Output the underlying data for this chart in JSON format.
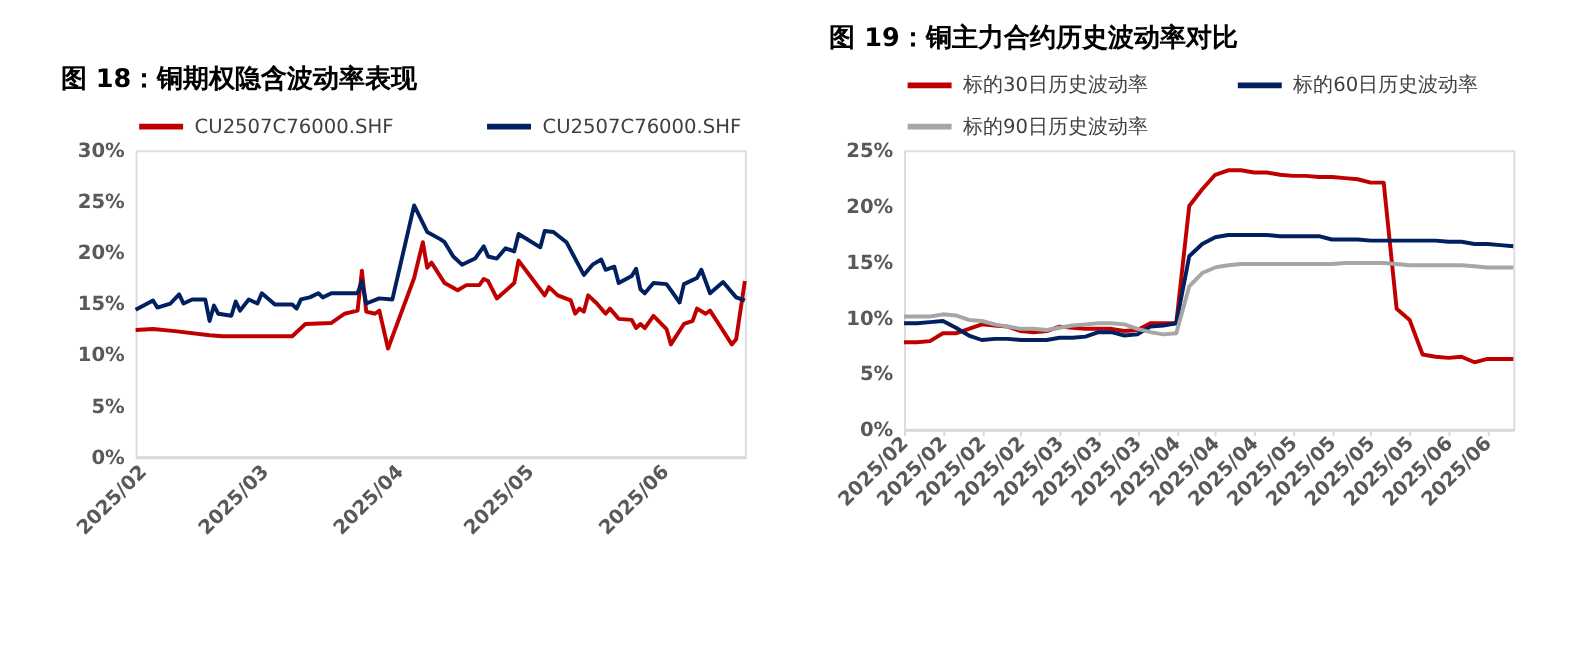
{
  "chart_data": [
    {
      "type": "line",
      "title": "图 18：铜期权隐含波动率表现",
      "legend": "top",
      "xlim": [
        "2025-02-01",
        "2025-06-21"
      ],
      "xticks": [
        {
          "value": "2025-02-01",
          "label": "2025/02"
        },
        {
          "value": "2025-03-01",
          "label": "2025/03"
        },
        {
          "value": "2025-04-01",
          "label": "2025/04"
        },
        {
          "value": "2025-05-01",
          "label": "2025/05"
        },
        {
          "value": "2025-06-01",
          "label": "2025/06"
        }
      ],
      "ylim": [
        0,
        30
      ],
      "yticks": [
        {
          "value": 0,
          "label": "0%"
        },
        {
          "value": 5,
          "label": "5%"
        },
        {
          "value": 10,
          "label": "10%"
        },
        {
          "value": 15,
          "label": "15%"
        },
        {
          "value": 20,
          "label": "20%"
        },
        {
          "value": 25,
          "label": "25%"
        },
        {
          "value": 30,
          "label": "30%"
        }
      ],
      "grid": false,
      "series": [
        {
          "name": "CU2507C76000.SHF",
          "color": "#c00000",
          "x": [
            "2025-02-01",
            "2025-02-05",
            "2025-02-10",
            "2025-02-18",
            "2025-02-21",
            "2025-03-09",
            "2025-03-12",
            "2025-03-18",
            "2025-03-21",
            "2025-03-24",
            "2025-03-25",
            "2025-03-26",
            "2025-03-28",
            "2025-03-29",
            "2025-03-31",
            "2025-04-06",
            "2025-04-08",
            "2025-04-09",
            "2025-04-10",
            "2025-04-13",
            "2025-04-16",
            "2025-04-18",
            "2025-04-21",
            "2025-04-22",
            "2025-04-23",
            "2025-04-25",
            "2025-04-29",
            "2025-04-30",
            "2025-05-03",
            "2025-05-06",
            "2025-05-07",
            "2025-05-09",
            "2025-05-12",
            "2025-05-13",
            "2025-05-14",
            "2025-05-15",
            "2025-05-16",
            "2025-05-18",
            "2025-05-20",
            "2025-05-21",
            "2025-05-23",
            "2025-05-26",
            "2025-05-27",
            "2025-05-28",
            "2025-05-29",
            "2025-05-31",
            "2025-06-03",
            "2025-06-04",
            "2025-06-07",
            "2025-06-09",
            "2025-06-10",
            "2025-06-12",
            "2025-06-13",
            "2025-06-15",
            "2025-06-18",
            "2025-06-19",
            "2025-06-21"
          ],
          "values": [
            12.4,
            12.5,
            12.3,
            11.9,
            11.8,
            11.8,
            13.0,
            13.1,
            14.0,
            14.3,
            18.2,
            14.2,
            14.0,
            14.3,
            10.6,
            17.5,
            21.0,
            18.5,
            19.0,
            17.0,
            16.3,
            16.8,
            16.8,
            17.4,
            17.2,
            15.5,
            17.0,
            19.2,
            17.5,
            15.8,
            16.6,
            15.8,
            15.3,
            14.0,
            14.5,
            14.2,
            15.8,
            15.0,
            14.0,
            14.5,
            13.5,
            13.4,
            12.6,
            13.0,
            12.6,
            13.8,
            12.5,
            11.0,
            13.0,
            13.3,
            14.5,
            14.0,
            14.3,
            13.0,
            11.0,
            11.5,
            17.2
          ]
        },
        {
          "name": "CU2507C76000.SHF",
          "color": "#002060",
          "x": [
            "2025-02-01",
            "2025-02-05",
            "2025-02-06",
            "2025-02-09",
            "2025-02-11",
            "2025-02-12",
            "2025-02-14",
            "2025-02-17",
            "2025-02-18",
            "2025-02-19",
            "2025-02-20",
            "2025-02-23",
            "2025-02-24",
            "2025-02-25",
            "2025-02-27",
            "2025-03-01",
            "2025-03-02",
            "2025-03-05",
            "2025-03-09",
            "2025-03-10",
            "2025-03-11",
            "2025-03-13",
            "2025-03-15",
            "2025-03-16",
            "2025-03-18",
            "2025-03-24",
            "2025-03-25",
            "2025-03-26",
            "2025-03-29",
            "2025-04-01",
            "2025-04-06",
            "2025-04-09",
            "2025-04-12",
            "2025-04-13",
            "2025-04-15",
            "2025-04-17",
            "2025-04-20",
            "2025-04-22",
            "2025-04-23",
            "2025-04-25",
            "2025-04-27",
            "2025-04-29",
            "2025-04-30",
            "2025-05-05",
            "2025-05-06",
            "2025-05-08",
            "2025-05-11",
            "2025-05-15",
            "2025-05-17",
            "2025-05-19",
            "2025-05-20",
            "2025-05-22",
            "2025-05-23",
            "2025-05-26",
            "2025-05-27",
            "2025-05-28",
            "2025-05-29",
            "2025-05-31",
            "2025-06-03",
            "2025-06-04",
            "2025-06-06",
            "2025-06-07",
            "2025-06-10",
            "2025-06-11",
            "2025-06-13",
            "2025-06-16",
            "2025-06-19",
            "2025-06-21"
          ],
          "values": [
            14.4,
            15.3,
            14.6,
            15.0,
            15.9,
            15.0,
            15.4,
            15.4,
            13.3,
            14.8,
            14.0,
            13.8,
            15.2,
            14.3,
            15.4,
            15.0,
            16.0,
            14.9,
            14.9,
            14.5,
            15.4,
            15.6,
            16.0,
            15.6,
            16.0,
            16.0,
            17.2,
            15.0,
            15.5,
            15.4,
            24.6,
            22.0,
            21.3,
            21.0,
            19.6,
            18.8,
            19.4,
            20.6,
            19.6,
            19.4,
            20.4,
            20.1,
            21.8,
            20.5,
            22.1,
            22.0,
            21.0,
            17.8,
            18.8,
            19.3,
            18.3,
            18.6,
            17.0,
            17.7,
            18.4,
            16.4,
            16.0,
            17.0,
            16.9,
            16.3,
            15.1,
            16.9,
            17.5,
            18.3,
            16.0,
            17.1,
            15.6,
            15.3
          ]
        }
      ]
    },
    {
      "type": "line",
      "title": "图 19：铜主力合约历史波动率对比",
      "legend": "top",
      "categories": [
        "2025/02",
        null,
        null,
        "2025/02",
        null,
        null,
        "2025/02",
        null,
        null,
        "2025/02",
        null,
        null,
        "2025/03",
        null,
        null,
        "2025/03",
        null,
        null,
        "2025/03",
        null,
        null,
        "2025/04",
        null,
        null,
        "2025/04",
        null,
        null,
        "2025/04",
        null,
        null,
        "2025/05",
        null,
        null,
        "2025/05",
        null,
        null,
        "2025/05",
        null,
        null,
        "2025/05",
        null,
        null,
        "2025/06",
        null,
        null,
        "2025/06",
        null,
        null
      ],
      "ylim": [
        0,
        25
      ],
      "yticks": [
        {
          "value": 0,
          "label": "0%"
        },
        {
          "value": 5,
          "label": "5%"
        },
        {
          "value": 10,
          "label": "10%"
        },
        {
          "value": 15,
          "label": "15%"
        },
        {
          "value": 20,
          "label": "20%"
        },
        {
          "value": 25,
          "label": "25%"
        }
      ],
      "grid": false,
      "series": [
        {
          "name": "标的30日历史波动率",
          "color": "#c00000",
          "values": [
            7.8,
            7.8,
            7.9,
            8.6,
            8.6,
            9.0,
            9.4,
            9.3,
            9.2,
            8.8,
            8.7,
            8.8,
            9.2,
            9.1,
            9.0,
            9.0,
            9.0,
            8.8,
            8.9,
            9.5,
            9.5,
            9.5,
            20.0,
            21.5,
            22.8,
            23.2,
            23.2,
            23.0,
            23.0,
            22.8,
            22.7,
            22.7,
            22.6,
            22.6,
            22.5,
            22.4,
            22.1,
            22.1,
            10.8,
            9.8,
            6.7,
            6.5,
            6.4,
            6.5,
            6.0,
            6.3,
            6.3,
            6.3
          ]
        },
        {
          "name": "标的60日历史波动率",
          "color": "#002060",
          "values": [
            9.5,
            9.5,
            9.6,
            9.7,
            9.1,
            8.4,
            8.0,
            8.1,
            8.1,
            8.0,
            8.0,
            8.0,
            8.2,
            8.2,
            8.3,
            8.7,
            8.7,
            8.4,
            8.5,
            9.2,
            9.3,
            9.5,
            15.5,
            16.6,
            17.2,
            17.4,
            17.4,
            17.4,
            17.4,
            17.3,
            17.3,
            17.3,
            17.3,
            17.0,
            17.0,
            17.0,
            16.9,
            16.9,
            16.9,
            16.9,
            16.9,
            16.9,
            16.8,
            16.8,
            16.6,
            16.6,
            16.5,
            16.4
          ]
        },
        {
          "name": "标的90日历史波动率",
          "color": "#a6a6a6",
          "values": [
            10.1,
            10.1,
            10.1,
            10.3,
            10.2,
            9.8,
            9.7,
            9.4,
            9.2,
            9.0,
            9.0,
            8.9,
            9.1,
            9.3,
            9.4,
            9.5,
            9.5,
            9.4,
            9.0,
            8.7,
            8.5,
            8.6,
            12.8,
            14.0,
            14.5,
            14.7,
            14.8,
            14.8,
            14.8,
            14.8,
            14.8,
            14.8,
            14.8,
            14.8,
            14.9,
            14.9,
            14.9,
            14.9,
            14.8,
            14.7,
            14.7,
            14.7,
            14.7,
            14.7,
            14.6,
            14.5,
            14.5,
            14.5
          ]
        }
      ]
    }
  ]
}
